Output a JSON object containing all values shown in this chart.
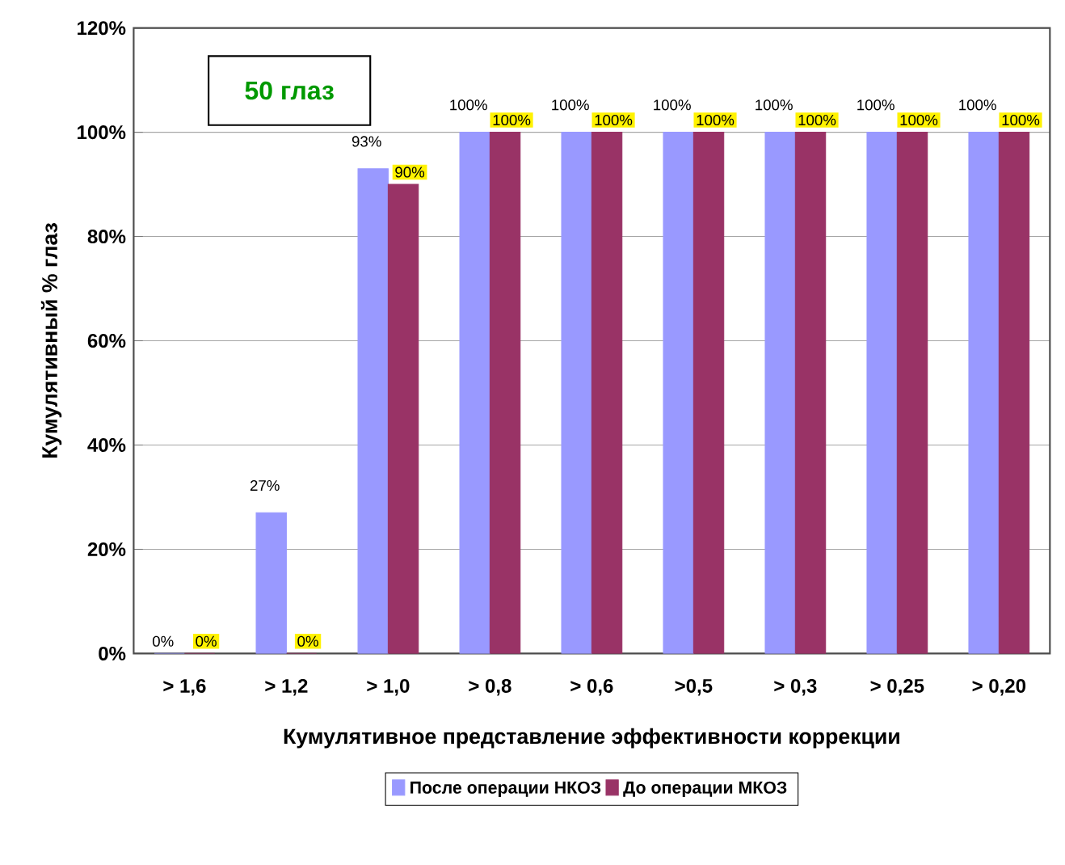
{
  "chart_data": {
    "type": "bar",
    "categories": [
      "> 1,6",
      "> 1,2",
      "> 1,0",
      "> 0,8",
      "> 0,6",
      ">0,5",
      "> 0,3",
      "> 0,25",
      "> 0,20"
    ],
    "series": [
      {
        "name": "После операции НКОЗ",
        "color": "#9999ff",
        "values": [
          0,
          27,
          93,
          100,
          100,
          100,
          100,
          100,
          100
        ],
        "value_labels": [
          "0%",
          "27%",
          "93%",
          "100%",
          "100%",
          "100%",
          "100%",
          "100%",
          "100%"
        ]
      },
      {
        "name": "До операции   МКОЗ",
        "color": "#993366",
        "values": [
          0,
          0,
          90,
          100,
          100,
          100,
          100,
          100,
          100
        ],
        "value_labels": [
          "0%",
          "0%",
          "90%",
          "100%",
          "100%",
          "100%",
          "100%",
          "100%",
          "100%"
        ]
      }
    ],
    "xlabel": "Кумулятивное представление эффективности коррекции",
    "ylabel": "Кумулятивный % глаз",
    "annotations": [
      "50 глаз"
    ],
    "ylim": [
      0,
      120
    ],
    "yticks": [
      {
        "value": 0,
        "label": "0%"
      },
      {
        "value": 20,
        "label": "20%"
      },
      {
        "value": 40,
        "label": "40%"
      },
      {
        "value": 60,
        "label": "60%"
      },
      {
        "value": 80,
        "label": "80%"
      },
      {
        "value": 100,
        "label": "100%"
      },
      {
        "value": 120,
        "label": "120%"
      }
    ],
    "grid": "y",
    "legend": "bottom"
  }
}
